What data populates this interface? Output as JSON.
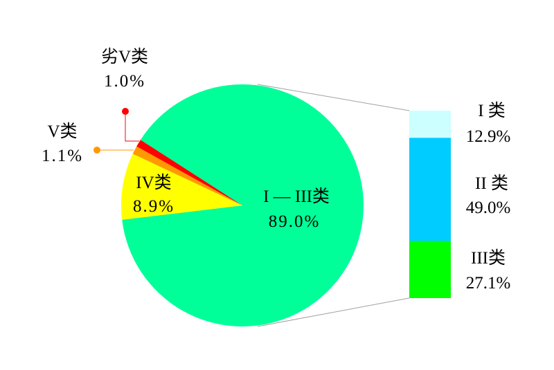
{
  "chart_data": {
    "type": "pie-of-bar",
    "pie": [
      {
        "label": "I — III类",
        "value": 89.0,
        "value_label": "89.0%",
        "color": "#00FF99"
      },
      {
        "label": "IV类",
        "value": 8.9,
        "value_label": "8.9%",
        "color": "#FFFF00"
      },
      {
        "label": "V类",
        "value": 1.1,
        "value_label": "1.1%",
        "color": "#FF9900"
      },
      {
        "label": "劣V类",
        "value": 1.0,
        "value_label": "1.0%",
        "color": "#FF0000"
      }
    ],
    "bar": [
      {
        "label": "I 类",
        "value": 12.9,
        "value_label": "12.9%",
        "color": "#CCFFFF"
      },
      {
        "label": "II 类",
        "value": 49.0,
        "value_label": "49.0%",
        "color": "#00CCFF"
      },
      {
        "label": "III类",
        "value": 27.1,
        "value_label": "27.1%",
        "color": "#00FF00"
      }
    ],
    "connector_color": "#A0A0A0"
  }
}
